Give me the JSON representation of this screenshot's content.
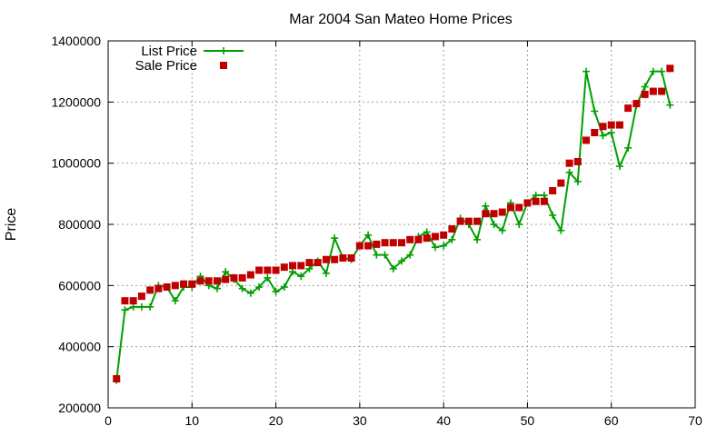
{
  "chart_data": {
    "type": "line",
    "title": "Mar 2004 San Mateo Home Prices",
    "xlabel": "",
    "ylabel": "Price",
    "xlim": [
      0,
      70
    ],
    "ylim": [
      200000,
      1400000
    ],
    "x_ticks": [
      0,
      10,
      20,
      30,
      40,
      50,
      60,
      70
    ],
    "y_ticks": [
      200000,
      400000,
      600000,
      800000,
      1000000,
      1200000,
      1400000
    ],
    "grid": true,
    "legend_position": "top-left",
    "series": [
      {
        "name": "List Price",
        "style": "line-cross",
        "color": "#00a000",
        "x": [
          1,
          2,
          3,
          4,
          5,
          6,
          7,
          8,
          9,
          10,
          11,
          12,
          13,
          14,
          15,
          16,
          17,
          18,
          19,
          20,
          21,
          22,
          23,
          24,
          25,
          26,
          27,
          28,
          29,
          30,
          31,
          32,
          33,
          34,
          35,
          36,
          37,
          38,
          39,
          40,
          41,
          42,
          43,
          44,
          45,
          46,
          47,
          48,
          49,
          50,
          51,
          52,
          53,
          54,
          55,
          56,
          57,
          58,
          59,
          60,
          61,
          62,
          63,
          64,
          65,
          66,
          67
        ],
        "values": [
          290000,
          520000,
          530000,
          530000,
          530000,
          600000,
          595000,
          550000,
          595000,
          595000,
          630000,
          600000,
          590000,
          645000,
          620000,
          590000,
          575000,
          595000,
          625000,
          580000,
          595000,
          645000,
          630000,
          655000,
          680000,
          640000,
          755000,
          690000,
          685000,
          730000,
          765000,
          700000,
          700000,
          655000,
          680000,
          700000,
          760000,
          775000,
          725000,
          730000,
          750000,
          820000,
          800000,
          750000,
          860000,
          800000,
          780000,
          870000,
          800000,
          870000,
          895000,
          895000,
          830000,
          780000,
          970000,
          940000,
          1300000,
          1170000,
          1090000,
          1100000,
          990000,
          1050000,
          1190000,
          1250000,
          1300000,
          1300000,
          1190000
        ]
      },
      {
        "name": "Sale Price",
        "style": "square-points",
        "color": "#c00000",
        "x": [
          1,
          2,
          3,
          4,
          5,
          6,
          7,
          8,
          9,
          10,
          11,
          12,
          13,
          14,
          15,
          16,
          17,
          18,
          19,
          20,
          21,
          22,
          23,
          24,
          25,
          26,
          27,
          28,
          29,
          30,
          31,
          32,
          33,
          34,
          35,
          36,
          37,
          38,
          39,
          40,
          41,
          42,
          43,
          44,
          45,
          46,
          47,
          48,
          49,
          50,
          51,
          52,
          53,
          54,
          55,
          56,
          57,
          58,
          59,
          60,
          61,
          62,
          63,
          64,
          65,
          66,
          67
        ],
        "values": [
          295000,
          550000,
          550000,
          565000,
          585000,
          590000,
          595000,
          600000,
          605000,
          605000,
          615000,
          615000,
          615000,
          620000,
          625000,
          625000,
          635000,
          650000,
          650000,
          650000,
          660000,
          665000,
          665000,
          675000,
          675000,
          685000,
          685000,
          690000,
          690000,
          730000,
          730000,
          735000,
          740000,
          740000,
          740000,
          750000,
          750000,
          755000,
          760000,
          765000,
          785000,
          810000,
          810000,
          810000,
          835000,
          835000,
          840000,
          855000,
          855000,
          870000,
          875000,
          875000,
          910000,
          935000,
          1000000,
          1005000,
          1075000,
          1100000,
          1120000,
          1125000,
          1125000,
          1180000,
          1195000,
          1225000,
          1235000,
          1235000,
          1310000
        ]
      }
    ]
  }
}
